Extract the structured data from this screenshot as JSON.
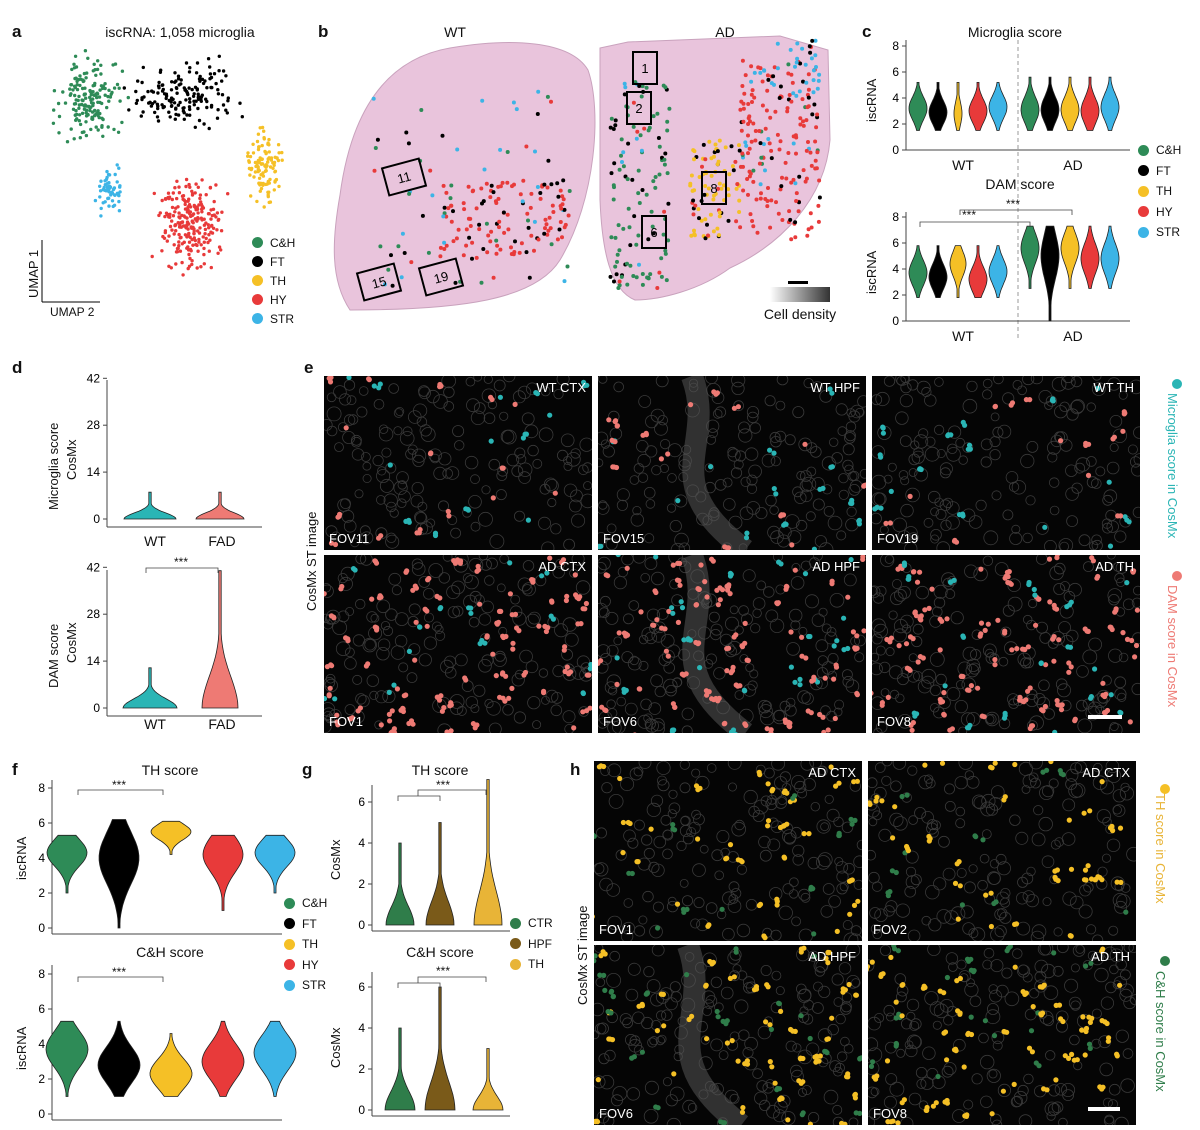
{
  "colors": {
    "CH": "#2e8b57",
    "FT": "#000000",
    "TH": "#f5c026",
    "HY": "#e83a3a",
    "STR": "#3cb4e6",
    "cosmx_teal": "#2ab5b5",
    "cosmx_pink": "#ee7a74",
    "g_ctr": "#2f7d4a",
    "g_hpf": "#7a5a19",
    "g_th": "#e8b437",
    "tissue": "#e9c4dc"
  },
  "panels": {
    "a": {
      "label": "a",
      "title": "iscRNA: 1,058 microglia",
      "axis_y": "UMAP 1",
      "axis_x": "UMAP 2",
      "legend": [
        "C&H",
        "FT",
        "TH",
        "HY",
        "STR"
      ]
    },
    "b": {
      "label": "b",
      "left_title": "WT",
      "right_title": "AD",
      "fov_boxes": [
        "11",
        "15",
        "19",
        "1",
        "2",
        "8",
        "6"
      ],
      "density_label": "Cell density"
    },
    "c": {
      "label": "c",
      "top_title": "Microglia score",
      "bottom_title": "DAM score",
      "ylabel": "iscRNA",
      "groups": [
        "WT",
        "AD"
      ],
      "sig": [
        "***",
        "***"
      ],
      "legend": [
        "C&H",
        "FT",
        "TH",
        "HY",
        "STR"
      ]
    },
    "d": {
      "label": "d",
      "top_ylabel": "Microglia score",
      "bottom_ylabel": "DAM score",
      "ylabel2": "CosMx",
      "groups": [
        "WT",
        "FAD"
      ],
      "sig": "***"
    },
    "e": {
      "label": "e",
      "side_label": "CosMx ST image",
      "top": [
        {
          "tag": "WT CTX",
          "fov": "FOV11"
        },
        {
          "tag": "WT HPF",
          "fov": "FOV15"
        },
        {
          "tag": "WT TH",
          "fov": "FOV19"
        }
      ],
      "bottom": [
        {
          "tag": "AD CTX",
          "fov": "FOV1"
        },
        {
          "tag": "AD HPF",
          "fov": "FOV6"
        },
        {
          "tag": "AD TH",
          "fov": "FOV8"
        }
      ],
      "legend_top": "Microglia score in CosMx",
      "legend_bottom": "DAM score in CosMx"
    },
    "f": {
      "label": "f",
      "top_title": "TH score",
      "bottom_title": "C&H score",
      "ylabel": "iscRNA",
      "sig": "***",
      "legend": [
        "C&H",
        "FT",
        "TH",
        "HY",
        "STR"
      ]
    },
    "g": {
      "label": "g",
      "top_title": "TH score",
      "bottom_title": "C&H score",
      "ylabel": "CosMx",
      "sig": "***",
      "legend": [
        "CTR",
        "HPF",
        "TH"
      ]
    },
    "h": {
      "label": "h",
      "side_label": "CosMx ST image",
      "top": [
        {
          "tag": "AD CTX",
          "fov": "FOV1"
        },
        {
          "tag": "AD CTX",
          "fov": "FOV2"
        }
      ],
      "bottom": [
        {
          "tag": "AD HPF",
          "fov": "FOV6"
        },
        {
          "tag": "AD TH",
          "fov": "FOV8"
        }
      ],
      "legend_top": "TH score in CosMx",
      "legend_bottom": "C&H score in CosMx"
    }
  },
  "chart_data": [
    {
      "type": "violin",
      "panel": "c-top",
      "title": "Microglia score",
      "ylabel": "iscRNA",
      "ylim": [
        0,
        8
      ],
      "yticks": [
        0,
        2,
        4,
        6,
        8
      ],
      "groups": [
        "WT",
        "AD"
      ],
      "series": [
        "C&H",
        "FT",
        "TH",
        "HY",
        "STR"
      ],
      "medians": {
        "WT": [
          3.2,
          2.9,
          2.8,
          3.0,
          3.3
        ],
        "AD": [
          3.1,
          3.1,
          3.1,
          3.0,
          3.3
        ]
      }
    },
    {
      "type": "violin",
      "panel": "c-bottom",
      "title": "DAM score",
      "ylabel": "iscRNA",
      "ylim": [
        0,
        8
      ],
      "yticks": [
        0,
        2,
        4,
        6,
        8
      ],
      "groups": [
        "WT",
        "AD"
      ],
      "series": [
        "C&H",
        "FT",
        "TH",
        "HY",
        "STR"
      ],
      "medians": {
        "WT": [
          3.7,
          3.4,
          4.4,
          3.2,
          3.8
        ],
        "AD": [
          5.6,
          5.0,
          5.6,
          4.8,
          4.8
        ]
      }
    },
    {
      "type": "violin",
      "panel": "d-top",
      "ylabel": "Microglia score CosMx",
      "ylim": [
        0,
        42
      ],
      "yticks": [
        0,
        14,
        28,
        42
      ],
      "categories": [
        "WT",
        "FAD"
      ],
      "medians": [
        2,
        2
      ]
    },
    {
      "type": "violin",
      "panel": "d-bottom",
      "ylabel": "DAM score CosMx",
      "ylim": [
        0,
        42
      ],
      "yticks": [
        0,
        14,
        28,
        42
      ],
      "categories": [
        "WT",
        "FAD"
      ],
      "medians": [
        3,
        6
      ]
    },
    {
      "type": "violin",
      "panel": "f-top",
      "title": "TH score",
      "ylabel": "iscRNA",
      "ylim": [
        0,
        8
      ],
      "yticks": [
        0,
        2,
        4,
        6,
        8
      ],
      "categories": [
        "C&H",
        "FT",
        "TH",
        "HY",
        "STR"
      ],
      "medians": [
        4.3,
        4.0,
        5.5,
        4.2,
        4.3
      ]
    },
    {
      "type": "violin",
      "panel": "f-bottom",
      "title": "C&H score",
      "ylabel": "iscRNA",
      "ylim": [
        0,
        8
      ],
      "yticks": [
        0,
        2,
        4,
        6,
        8
      ],
      "categories": [
        "C&H",
        "FT",
        "TH",
        "HY",
        "STR"
      ],
      "medians": [
        3.7,
        2.8,
        2.3,
        3.0,
        3.5
      ]
    },
    {
      "type": "violin",
      "panel": "g-top",
      "title": "TH score",
      "ylabel": "CosMx",
      "ylim": [
        0,
        7
      ],
      "yticks": [
        0,
        2,
        4,
        6
      ],
      "categories": [
        "CTR",
        "HPF",
        "TH"
      ],
      "medians": [
        1,
        1,
        2
      ]
    },
    {
      "type": "violin",
      "panel": "g-bottom",
      "title": "C&H score",
      "ylabel": "CosMx",
      "ylim": [
        0,
        6.5
      ],
      "yticks": [
        0,
        2,
        4,
        6
      ],
      "categories": [
        "CTR",
        "HPF",
        "TH"
      ],
      "medians": [
        1,
        1.5,
        0.8
      ]
    }
  ]
}
